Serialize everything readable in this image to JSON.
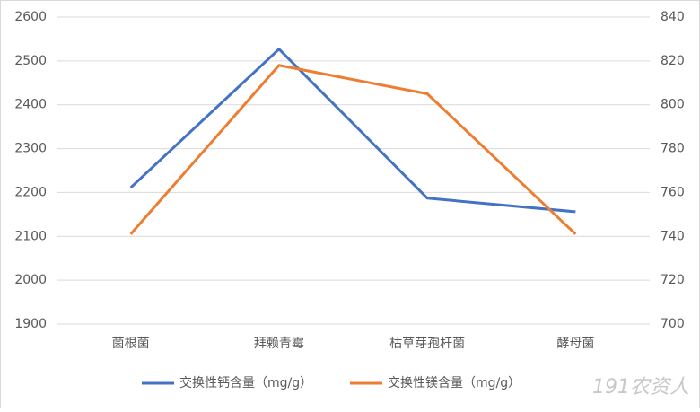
{
  "chart_data": {
    "type": "line",
    "categories": [
      "菌根菌",
      "拜赖青霉",
      "枯草芽孢杆菌",
      "酵母菌"
    ],
    "series": [
      {
        "name": "交换性钙含量（mg/g）",
        "color": "#4472c4",
        "values": [
          2211,
          2527,
          2187,
          2156
        ]
      },
      {
        "name": "交换性镁含量（mg/g）",
        "color": "#ed7d31",
        "axis": "y2",
        "values": [
          741,
          818,
          805,
          741
        ]
      }
    ],
    "ylim": [
      1900,
      2600
    ],
    "yticks": [
      1900,
      2000,
      2100,
      2200,
      2300,
      2400,
      2500,
      2600
    ],
    "y2lim": [
      700,
      840
    ],
    "y2ticks": [
      700,
      720,
      740,
      760,
      780,
      800,
      820,
      840
    ],
    "grid": true,
    "legend": "bottom",
    "watermark": "191农资人"
  }
}
